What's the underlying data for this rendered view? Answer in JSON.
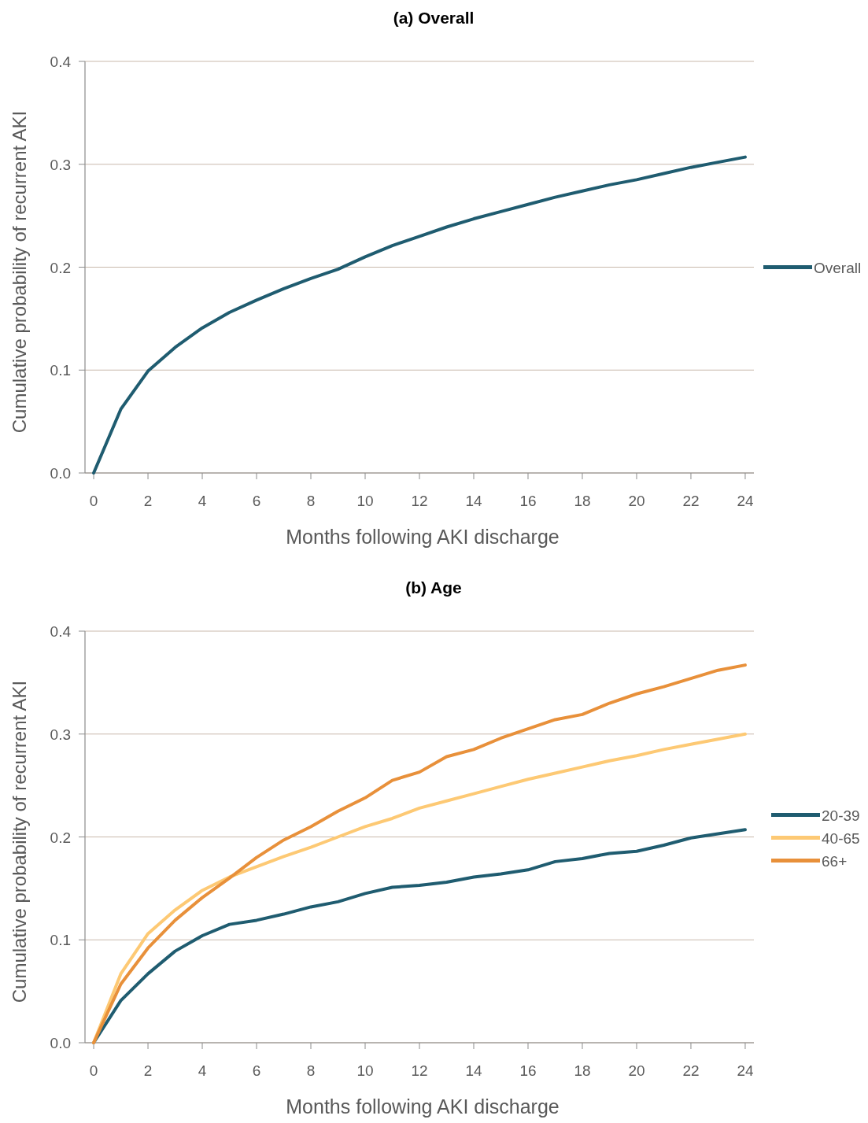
{
  "chart_data": [
    {
      "type": "line",
      "title": "(a) Overall",
      "xlabel": "Months following AKI discharge",
      "ylabel": "Cumulative probability of recurrent AKI",
      "x": [
        0,
        1,
        2,
        3,
        4,
        5,
        6,
        7,
        8,
        9,
        10,
        11,
        12,
        13,
        14,
        15,
        16,
        17,
        18,
        19,
        20,
        21,
        22,
        23,
        24
      ],
      "xlim": [
        -0.32,
        24.32
      ],
      "ylim": [
        0,
        0.4
      ],
      "xticks": [
        0,
        2,
        4,
        6,
        8,
        10,
        12,
        14,
        16,
        18,
        20,
        22,
        24
      ],
      "yticks": [
        {
          "value": 0,
          "label": "0.0"
        },
        {
          "value": 0.1,
          "label": "0.1"
        },
        {
          "value": 0.2,
          "label": "0.2"
        },
        {
          "value": 0.3,
          "label": "0.3"
        },
        {
          "value": 0.4,
          "label": "0.4"
        }
      ],
      "grid": "y",
      "legend": "right",
      "marker": "none",
      "line_style": "solid",
      "series": [
        {
          "name": "Overall",
          "color": "#1f5c70",
          "values": [
            0,
            0.062,
            0.099,
            0.122,
            0.141,
            0.156,
            0.168,
            0.179,
            0.189,
            0.198,
            0.21,
            0.221,
            0.23,
            0.239,
            0.247,
            0.254,
            0.261,
            0.268,
            0.274,
            0.28,
            0.285,
            0.291,
            0.297,
            0.302,
            0.307
          ]
        }
      ]
    },
    {
      "type": "line",
      "title": "(b) Age",
      "xlabel": "Months following AKI discharge",
      "ylabel": "Cumulative probability of recurrent AKI",
      "x": [
        0,
        1,
        2,
        3,
        4,
        5,
        6,
        7,
        8,
        9,
        10,
        11,
        12,
        13,
        14,
        15,
        16,
        17,
        18,
        19,
        20,
        21,
        22,
        23,
        24
      ],
      "xlim": [
        -0.32,
        24.32
      ],
      "ylim": [
        0,
        0.4
      ],
      "xticks": [
        0,
        2,
        4,
        6,
        8,
        10,
        12,
        14,
        16,
        18,
        20,
        22,
        24
      ],
      "yticks": [
        {
          "value": 0,
          "label": "0.0"
        },
        {
          "value": 0.1,
          "label": "0.1"
        },
        {
          "value": 0.2,
          "label": "0.2"
        },
        {
          "value": 0.3,
          "label": "0.3"
        },
        {
          "value": 0.4,
          "label": "0.4"
        }
      ],
      "grid": "y",
      "legend": "right",
      "marker": "none",
      "line_style": "solid",
      "series": [
        {
          "name": "20-39",
          "color": "#1f5c70",
          "values": [
            0,
            0.041,
            0.067,
            0.089,
            0.104,
            0.115,
            0.119,
            0.125,
            0.132,
            0.137,
            0.145,
            0.151,
            0.153,
            0.156,
            0.161,
            0.164,
            0.168,
            0.176,
            0.179,
            0.184,
            0.186,
            0.192,
            0.199,
            0.203,
            0.207
          ]
        },
        {
          "name": "40-65",
          "color": "#fdc974",
          "values": [
            0,
            0.067,
            0.106,
            0.129,
            0.148,
            0.161,
            0.171,
            0.181,
            0.19,
            0.2,
            0.21,
            0.218,
            0.228,
            0.235,
            0.242,
            0.249,
            0.256,
            0.262,
            0.268,
            0.274,
            0.279,
            0.285,
            0.29,
            0.295,
            0.3
          ]
        },
        {
          "name": "66+",
          "color": "#e8903a",
          "values": [
            0,
            0.057,
            0.092,
            0.119,
            0.141,
            0.16,
            0.18,
            0.197,
            0.21,
            0.225,
            0.238,
            0.255,
            0.263,
            0.278,
            0.285,
            0.296,
            0.305,
            0.314,
            0.319,
            0.33,
            0.339,
            0.346,
            0.354,
            0.362,
            0.367
          ]
        }
      ]
    }
  ]
}
